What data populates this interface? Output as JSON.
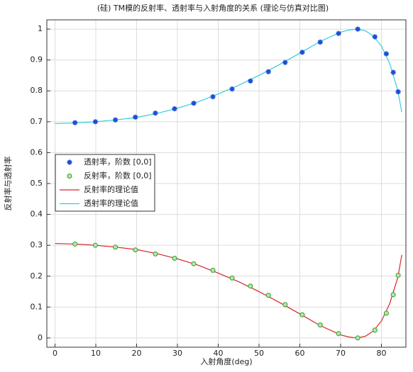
{
  "chart_data": {
    "type": "line",
    "title": "(硅) TM模的反射率、透射率与入射角度的关系 (理论与仿真对比图)",
    "xlabel": "入射角度(deg)",
    "ylabel": "反射率与透射率",
    "xlim": [
      -2,
      86
    ],
    "ylim": [
      -0.03,
      1.03
    ],
    "xticks": [
      0,
      10,
      20,
      30,
      40,
      50,
      60,
      70,
      80
    ],
    "yticks": [
      0,
      0.1,
      0.2,
      0.3,
      0.4,
      0.5,
      0.6,
      0.7,
      0.8,
      0.9,
      1
    ],
    "grid": true,
    "legend": "left",
    "series": [
      {
        "name": "透射率，阶数 [0,0]",
        "color": "#1a4fd6",
        "marker": "asterisk",
        "x": [
          4.9,
          9.9,
          14.8,
          19.7,
          24.6,
          29.3,
          34.0,
          38.7,
          43.4,
          47.9,
          52.3,
          56.4,
          60.6,
          65.0,
          69.5,
          74.2,
          78.4,
          81.2,
          82.9,
          84.1
        ],
        "values": [
          0.697,
          0.7,
          0.706,
          0.715,
          0.728,
          0.742,
          0.76,
          0.781,
          0.806,
          0.832,
          0.862,
          0.892,
          0.925,
          0.958,
          0.986,
          1.0,
          0.975,
          0.92,
          0.86,
          0.797
        ]
      },
      {
        "name": "反射率，阶数 [0,0]",
        "color": "#2e9e2e",
        "marker": "circle",
        "x": [
          4.9,
          9.9,
          14.8,
          19.7,
          24.6,
          29.3,
          34.0,
          38.7,
          43.4,
          47.9,
          52.3,
          56.4,
          60.6,
          65.0,
          69.5,
          74.2,
          78.4,
          81.2,
          82.9,
          84.1
        ],
        "values": [
          0.304,
          0.3,
          0.294,
          0.285,
          0.272,
          0.258,
          0.24,
          0.219,
          0.194,
          0.168,
          0.138,
          0.108,
          0.075,
          0.042,
          0.014,
          0.0,
          0.025,
          0.08,
          0.14,
          0.203
        ]
      },
      {
        "name": "反射率的理论值",
        "color": "#d62728",
        "marker": "line",
        "x": [
          0,
          5,
          10,
          15,
          20,
          25,
          30,
          35,
          40,
          45,
          50,
          55,
          60,
          65,
          70,
          72,
          74,
          76,
          78,
          80,
          82,
          84,
          85
        ],
        "values": [
          0.306,
          0.304,
          0.3,
          0.294,
          0.286,
          0.273,
          0.256,
          0.236,
          0.21,
          0.182,
          0.15,
          0.115,
          0.078,
          0.04,
          0.01,
          0.003,
          0.0,
          0.005,
          0.022,
          0.055,
          0.11,
          0.195,
          0.269
        ]
      },
      {
        "name": "透射率的理论值",
        "color": "#33ccdd",
        "marker": "line",
        "x": [
          0,
          5,
          10,
          15,
          20,
          25,
          30,
          35,
          40,
          45,
          50,
          55,
          60,
          65,
          70,
          72,
          74,
          76,
          78,
          80,
          82,
          84,
          85
        ],
        "values": [
          0.694,
          0.696,
          0.7,
          0.706,
          0.714,
          0.727,
          0.744,
          0.764,
          0.79,
          0.818,
          0.85,
          0.885,
          0.922,
          0.96,
          0.99,
          0.997,
          1.0,
          0.995,
          0.978,
          0.945,
          0.89,
          0.802,
          0.731
        ]
      }
    ]
  }
}
